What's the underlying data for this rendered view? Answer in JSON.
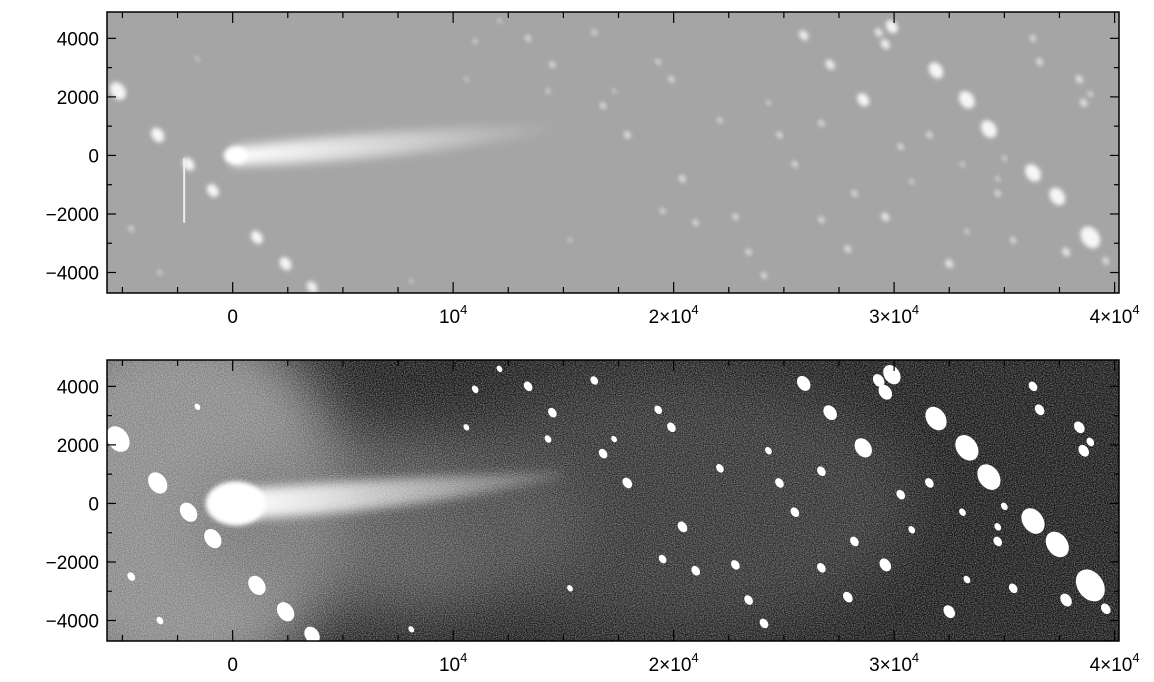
{
  "figure": {
    "panels": [
      {
        "id": "top",
        "name": "panel-linear-stretch",
        "style": "soft",
        "background": "#a5a5a5"
      },
      {
        "id": "bottom",
        "name": "panel-high-contrast-stretch",
        "style": "hard",
        "background": "#161616"
      }
    ],
    "y_ticks": [
      {
        "value": 4000,
        "label": "4000"
      },
      {
        "value": 2000,
        "label": "2000"
      },
      {
        "value": 0,
        "label": "0"
      },
      {
        "value": -2000,
        "label": "−2000"
      },
      {
        "value": -4000,
        "label": "−4000"
      }
    ],
    "x_ticks": [
      {
        "value": 0,
        "mant": "0",
        "exp": ""
      },
      {
        "value": 10000,
        "mant": "10",
        "exp": "4"
      },
      {
        "value": 20000,
        "mant": "2×10",
        "exp": "4"
      },
      {
        "value": 30000,
        "mant": "3×10",
        "exp": "4"
      },
      {
        "value": 40000,
        "mant": "4×10",
        "exp": "4"
      }
    ],
    "x_range": [
      -5700,
      40200
    ],
    "y_range": [
      -4700,
      4900
    ],
    "comet": {
      "nucleus": [
        0,
        0
      ],
      "tail_end": [
        15000,
        1000
      ]
    },
    "stars": [
      [
        -5200,
        2200,
        1.2
      ],
      [
        -3400,
        700,
        1.0
      ],
      [
        -2000,
        -300,
        0.9
      ],
      [
        -900,
        -1200,
        0.9
      ],
      [
        1100,
        -2800,
        0.9
      ],
      [
        2400,
        -3700,
        0.9
      ],
      [
        3600,
        -4500,
        0.8
      ],
      [
        -4600,
        -2500,
        0.4
      ],
      [
        -3300,
        -4000,
        0.35
      ],
      [
        -1600,
        3300,
        0.3
      ],
      [
        11000,
        3900,
        0.35
      ],
      [
        13400,
        4000,
        0.45
      ],
      [
        14500,
        3100,
        0.45
      ],
      [
        16400,
        4200,
        0.4
      ],
      [
        16800,
        1700,
        0.45
      ],
      [
        17900,
        700,
        0.5
      ],
      [
        19300,
        3200,
        0.4
      ],
      [
        19900,
        2600,
        0.45
      ],
      [
        20400,
        -800,
        0.5
      ],
      [
        19500,
        -1900,
        0.4
      ],
      [
        21000,
        -2300,
        0.45
      ],
      [
        22100,
        1200,
        0.4
      ],
      [
        22800,
        -2100,
        0.45
      ],
      [
        23400,
        -3300,
        0.45
      ],
      [
        24300,
        1800,
        0.35
      ],
      [
        24100,
        -4100,
        0.45
      ],
      [
        24800,
        700,
        0.45
      ],
      [
        25900,
        4100,
        0.7
      ],
      [
        25500,
        -300,
        0.45
      ],
      [
        26700,
        1100,
        0.45
      ],
      [
        27100,
        3100,
        0.7
      ],
      [
        26700,
        -2200,
        0.45
      ],
      [
        27900,
        -3200,
        0.5
      ],
      [
        28600,
        1900,
        0.9
      ],
      [
        28200,
        -1300,
        0.45
      ],
      [
        29300,
        4200,
        0.6
      ],
      [
        29900,
        4400,
        0.9
      ],
      [
        29600,
        3800,
        0.7
      ],
      [
        29600,
        -2100,
        0.6
      ],
      [
        30300,
        300,
        0.45
      ],
      [
        31900,
        2900,
        1.1
      ],
      [
        31600,
        700,
        0.45
      ],
      [
        32500,
        -3700,
        0.6
      ],
      [
        33300,
        1900,
        1.2
      ],
      [
        34300,
        900,
        1.2
      ],
      [
        34700,
        -1300,
        0.45
      ],
      [
        35400,
        -2900,
        0.45
      ],
      [
        36300,
        4000,
        0.45
      ],
      [
        36300,
        -600,
        1.2
      ],
      [
        36600,
        3200,
        0.5
      ],
      [
        37400,
        -1400,
        1.2
      ],
      [
        37800,
        -3300,
        0.6
      ],
      [
        38400,
        2600,
        0.55
      ],
      [
        38600,
        1800,
        0.55
      ],
      [
        38900,
        -2800,
        1.5
      ],
      [
        39600,
        -3600,
        0.5
      ],
      [
        38900,
        2100,
        0.4
      ],
      [
        33100,
        -300,
        0.35
      ],
      [
        34700,
        -800,
        0.35
      ],
      [
        35000,
        -100,
        0.35
      ],
      [
        14300,
        2200,
        0.35
      ],
      [
        10600,
        2600,
        0.3
      ],
      [
        12100,
        4600,
        0.3
      ],
      [
        17300,
        2200,
        0.3
      ],
      [
        15300,
        -2900,
        0.3
      ],
      [
        8100,
        -4300,
        0.3
      ],
      [
        30800,
        -900,
        0.35
      ],
      [
        33300,
        -2600,
        0.35
      ]
    ]
  }
}
